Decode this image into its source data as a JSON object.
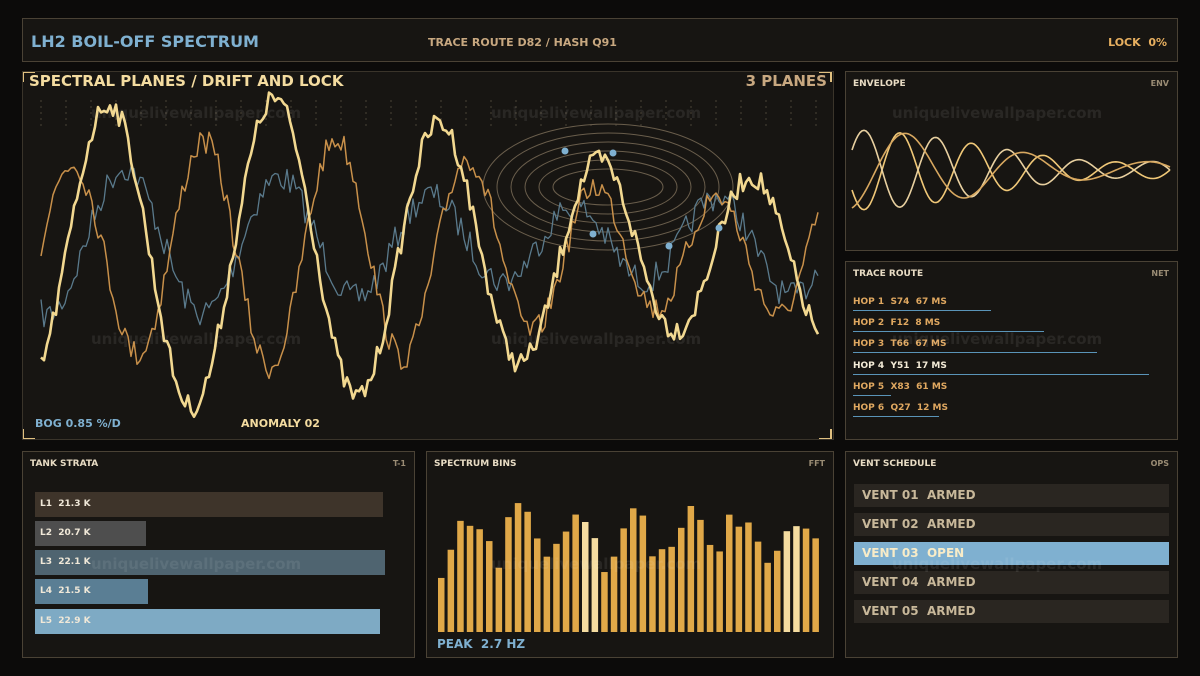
{
  "header": {
    "title": "LH2 BOIL-OFF SPECTRUM",
    "route": "TRACE ROUTE D82 / HASH Q91",
    "lock": "LOCK  0%"
  },
  "watermark": "uniquelivewallpaper.com",
  "spectral": {
    "title": "SPECTRAL PLANES / DRIFT AND LOCK",
    "badge": "3 PLANES",
    "bog": "BOG 0.85 %/D",
    "anomaly": "ANOMALY 02"
  },
  "envelope": {
    "title": "ENVELOPE",
    "tag": "ENV"
  },
  "trace_route": {
    "title": "TRACE ROUTE",
    "tag": "NET",
    "hops": [
      "HOP 1  S74  67 MS",
      "HOP 2  F12  8 MS",
      "HOP 3  T66  67 MS",
      "HOP 4  Y51  17 MS",
      "HOP 5  X83  61 MS",
      "HOP 6  Q27  12 MS"
    ]
  },
  "tank_strata": {
    "title": "TANK STRATA",
    "tag": "T-1",
    "layers": [
      "L1  21.3 K",
      "L2  20.7 K",
      "L3  22.1 K",
      "L4  21.5 K",
      "L5  22.9 K"
    ]
  },
  "spectrum_bins": {
    "title": "SPECTRUM BINS",
    "tag": "FFT",
    "peak": "PEAK  2.7 HZ"
  },
  "vent_schedule": {
    "title": "VENT SCHEDULE",
    "tag": "OPS",
    "vents": [
      "VENT 01  ARMED",
      "VENT 02  ARMED",
      "VENT 03  OPEN",
      "VENT 04  ARMED",
      "VENT 05  ARMED"
    ]
  }
}
